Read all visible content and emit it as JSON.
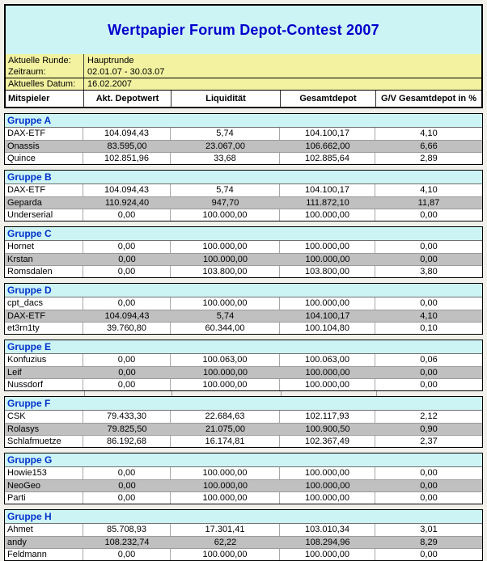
{
  "title": "Wertpapier Forum Depot-Contest 2007",
  "info": {
    "rows": [
      {
        "label": "Aktuelle Runde:",
        "value": "Hauptrunde"
      },
      {
        "label": "Zeitraum:",
        "value": "02.01.07 - 30.03.07"
      },
      {
        "label": "Aktuelles Datum:",
        "value": "16.02.2007"
      }
    ]
  },
  "columns": [
    "Mitspieler",
    "Akt. Depotwert",
    "Liquidität",
    "Gesamtdepot",
    "G/V Gesamtdepot in %"
  ],
  "groups": [
    {
      "name": "Gruppe A",
      "rows": [
        {
          "player": "DAX-ETF",
          "depotwert": "104.094,43",
          "liquiditaet": "5,74",
          "gesamtdepot": "104.100,17",
          "gv": "4,10"
        },
        {
          "player": "Onassis",
          "depotwert": "83.595,00",
          "liquiditaet": "23.067,00",
          "gesamtdepot": "106.662,00",
          "gv": "6,66"
        },
        {
          "player": "Quince",
          "depotwert": "102.851,96",
          "liquiditaet": "33,68",
          "gesamtdepot": "102.885,64",
          "gv": "2,89"
        }
      ]
    },
    {
      "name": "Gruppe B",
      "rows": [
        {
          "player": "DAX-ETF",
          "depotwert": "104.094,43",
          "liquiditaet": "5,74",
          "gesamtdepot": "104.100,17",
          "gv": "4,10"
        },
        {
          "player": "Geparda",
          "depotwert": "110.924,40",
          "liquiditaet": "947,70",
          "gesamtdepot": "111.872,10",
          "gv": "11,87"
        },
        {
          "player": "Underserial",
          "depotwert": "0,00",
          "liquiditaet": "100.000,00",
          "gesamtdepot": "100.000,00",
          "gv": "0,00"
        }
      ]
    },
    {
      "name": "Gruppe C",
      "rows": [
        {
          "player": "Hornet",
          "depotwert": "0,00",
          "liquiditaet": "100.000,00",
          "gesamtdepot": "100.000,00",
          "gv": "0,00"
        },
        {
          "player": "Krstan",
          "depotwert": "0,00",
          "liquiditaet": "100.000,00",
          "gesamtdepot": "100.000,00",
          "gv": "0,00"
        },
        {
          "player": "Romsdalen",
          "depotwert": "0,00",
          "liquiditaet": "103.800,00",
          "gesamtdepot": "103.800,00",
          "gv": "3,80"
        }
      ]
    },
    {
      "name": "Gruppe D",
      "rows": [
        {
          "player": "cpt_dacs",
          "depotwert": "0,00",
          "liquiditaet": "100.000,00",
          "gesamtdepot": "100.000,00",
          "gv": "0,00"
        },
        {
          "player": "DAX-ETF",
          "depotwert": "104.094,43",
          "liquiditaet": "5,74",
          "gesamtdepot": "104.100,17",
          "gv": "4,10"
        },
        {
          "player": "et3rn1ty",
          "depotwert": "39.760,80",
          "liquiditaet": "60.344,00",
          "gesamtdepot": "100.104,80",
          "gv": "0,10"
        }
      ]
    },
    {
      "name": "Gruppe E",
      "rows": [
        {
          "player": "Konfuzius",
          "depotwert": "0,00",
          "liquiditaet": "100.063,00",
          "gesamtdepot": "100.063,00",
          "gv": "0,06"
        },
        {
          "player": "Leif",
          "depotwert": "0,00",
          "liquiditaet": "100.000,00",
          "gesamtdepot": "100.000,00",
          "gv": "0,00"
        },
        {
          "player": "Nussdorf",
          "depotwert": "0,00",
          "liquiditaet": "100.000,00",
          "gesamtdepot": "100.000,00",
          "gv": "0,00"
        }
      ]
    },
    {
      "name": "Gruppe F",
      "rows": [
        {
          "player": "CSK",
          "depotwert": "79.433,30",
          "liquiditaet": "22.684,63",
          "gesamtdepot": "102.117,93",
          "gv": "2,12"
        },
        {
          "player": "Rolasys",
          "depotwert": "79.825,50",
          "liquiditaet": "21.075,00",
          "gesamtdepot": "100.900,50",
          "gv": "0,90"
        },
        {
          "player": "Schlafmuetze",
          "depotwert": "86.192,68",
          "liquiditaet": "16.174,81",
          "gesamtdepot": "102.367,49",
          "gv": "2,37"
        }
      ]
    },
    {
      "name": "Gruppe G",
      "rows": [
        {
          "player": "Howie153",
          "depotwert": "0,00",
          "liquiditaet": "100.000,00",
          "gesamtdepot": "100.000,00",
          "gv": "0,00"
        },
        {
          "player": "NeoGeo",
          "depotwert": "0,00",
          "liquiditaet": "100.000,00",
          "gesamtdepot": "100.000,00",
          "gv": "0,00"
        },
        {
          "player": "Parti",
          "depotwert": "0,00",
          "liquiditaet": "100.000,00",
          "gesamtdepot": "100.000,00",
          "gv": "0,00"
        }
      ]
    },
    {
      "name": "Gruppe H",
      "rows": [
        {
          "player": "Ahmet",
          "depotwert": "85.708,93",
          "liquiditaet": "17.301,41",
          "gesamtdepot": "103.010,34",
          "gv": "3,01"
        },
        {
          "player": "andy",
          "depotwert": "108.232,74",
          "liquiditaet": "62,22",
          "gesamtdepot": "108.294,96",
          "gv": "8,29"
        },
        {
          "player": "Feldmann",
          "depotwert": "0,00",
          "liquiditaet": "100.000,00",
          "gesamtdepot": "100.000,00",
          "gv": "0,00"
        }
      ]
    }
  ],
  "colors": {
    "title_text": "#0000CC",
    "group_title_text": "#0033CC",
    "band_cyan": "#CDF4F4",
    "band_yellow": "#F2F2A0",
    "row_highlight": "#C0C0C0",
    "page_background": "#F1F0EA"
  }
}
